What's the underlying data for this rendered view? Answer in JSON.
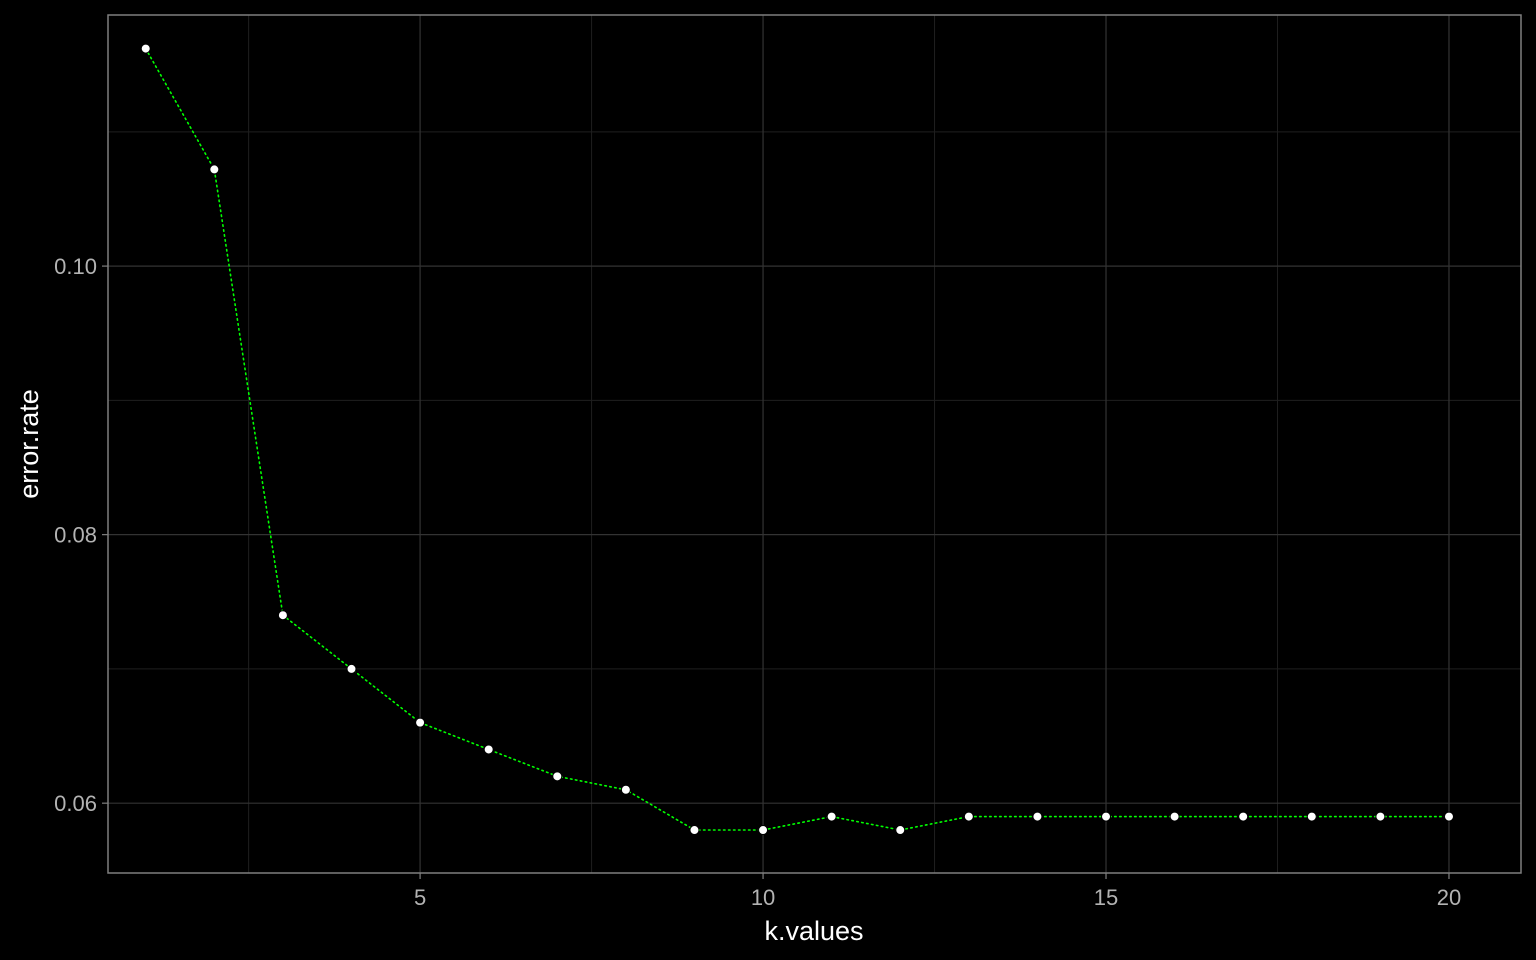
{
  "colors": {
    "background": "#000000",
    "panel_border": "#7f7f7f",
    "grid_major": "#333333",
    "grid_minor": "#1f1f1f",
    "line": "#00ff00",
    "point_fill": "#ffffff",
    "point_stroke": "#000000",
    "tick_text": "#b3b3b3",
    "title_text": "#ffffff"
  },
  "chart_data": {
    "type": "line",
    "title": "",
    "xlabel": "k.values",
    "ylabel": "error.rate",
    "xlim": [
      0.45,
      21.05
    ],
    "ylim": [
      0.0548,
      0.1187
    ],
    "x_ticks": [
      5,
      10,
      15,
      20
    ],
    "x_tick_labels": [
      "5",
      "10",
      "15",
      "20"
    ],
    "x_minor_ticks": [
      2.5,
      7.5,
      12.5,
      17.5
    ],
    "y_ticks": [
      0.06,
      0.08,
      0.1
    ],
    "y_tick_labels": [
      "0.06",
      "0.08",
      "0.10"
    ],
    "y_minor_ticks": [
      0.07,
      0.09,
      0.11
    ],
    "grid": true,
    "legend": "none",
    "line_style": "dotted",
    "markers": true,
    "series": [
      {
        "x": [
          1,
          2,
          3,
          4,
          5,
          6,
          7,
          8,
          9,
          10,
          11,
          12,
          13,
          14,
          15,
          16,
          17,
          18,
          19,
          20
        ],
        "values": [
          0.1162,
          0.1072,
          0.074,
          0.07,
          0.066,
          0.064,
          0.062,
          0.061,
          0.058,
          0.058,
          0.059,
          0.058,
          0.059,
          0.059,
          0.059,
          0.059,
          0.059,
          0.059,
          0.059,
          0.059
        ]
      }
    ]
  }
}
